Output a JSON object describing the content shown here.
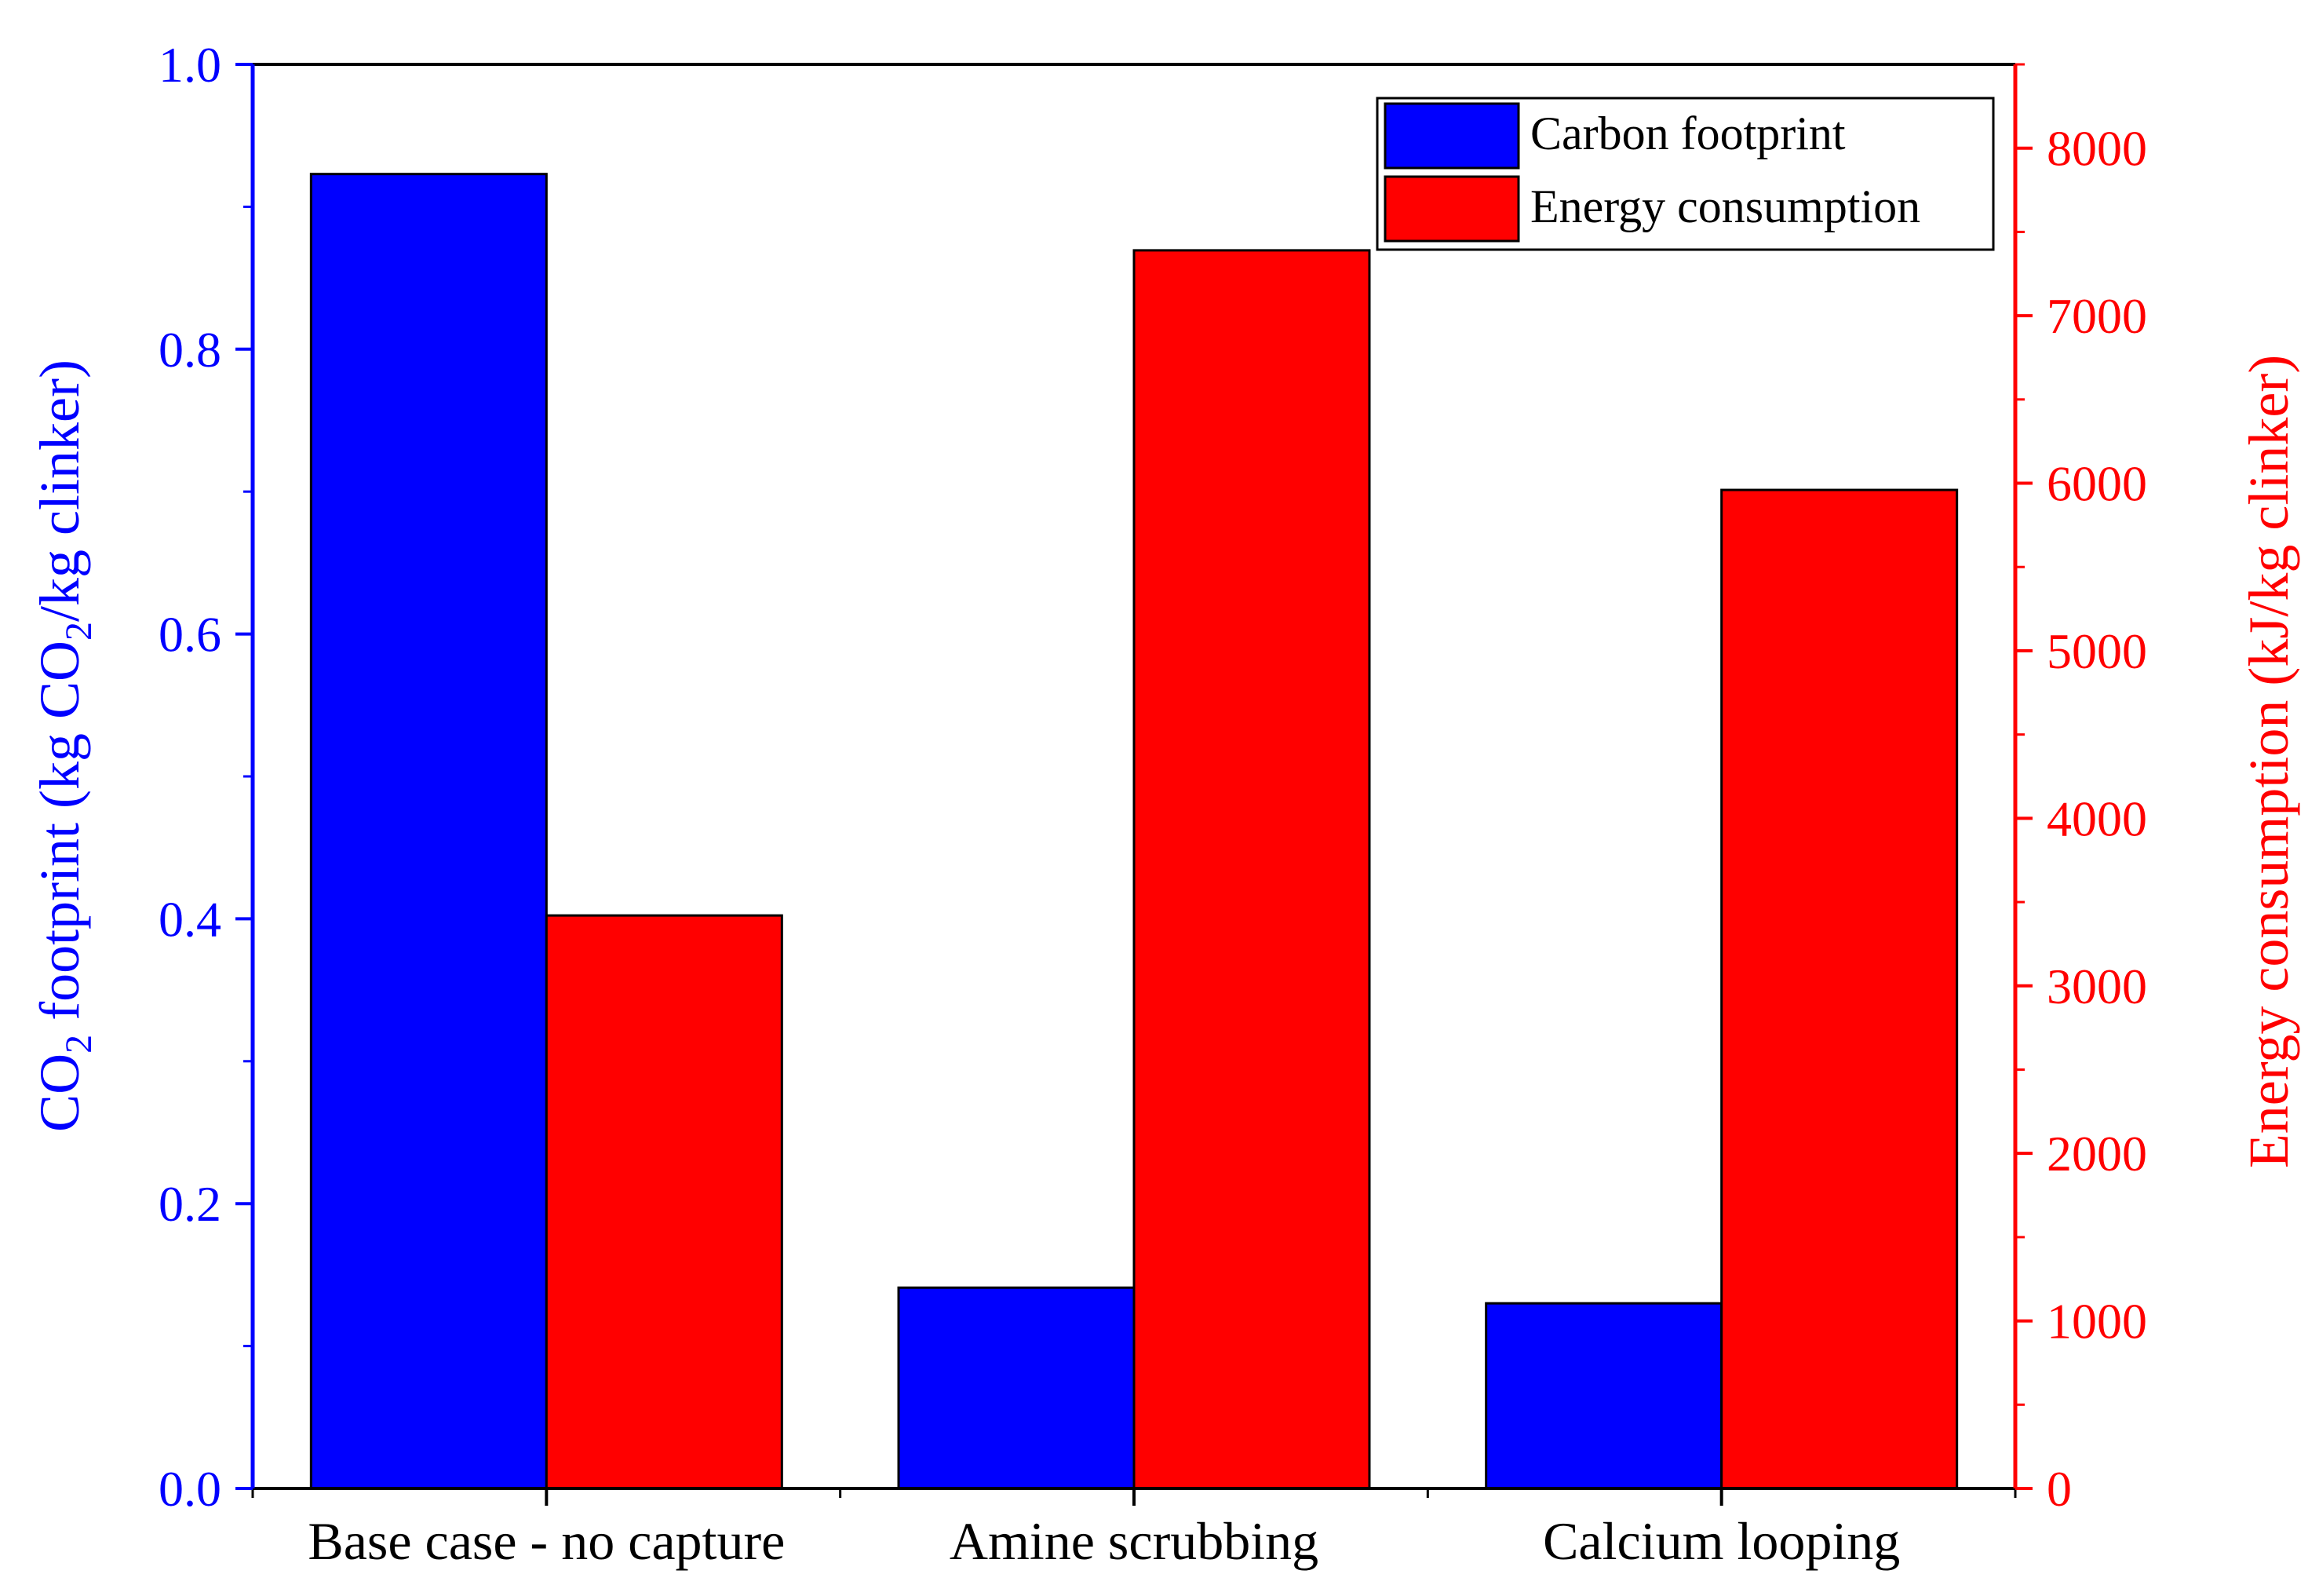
{
  "chart_data": {
    "type": "bar",
    "categories": [
      "Base case - no capture",
      "Amine scrubbing",
      "Calcium looping"
    ],
    "series": [
      {
        "name": "Carbon footprint",
        "axis": "left",
        "color": "#0000ff",
        "values": [
          0.923,
          0.141,
          0.13
        ]
      },
      {
        "name": "Energy consumption",
        "axis": "right",
        "color": "#ff0000",
        "values": [
          3420,
          7390,
          5960
        ]
      }
    ],
    "left_axis": {
      "title_prefix": "CO",
      "title_sub1": "2",
      "title_mid": " footprint (kg CO",
      "title_sub2": "2",
      "title_suffix": "/kg clinker)",
      "ylim": [
        0,
        1.0
      ],
      "ticks": [
        0.0,
        0.2,
        0.4,
        0.6,
        0.8,
        1.0
      ],
      "tick_labels": [
        "0.0",
        "0.2",
        "0.4",
        "0.6",
        "0.8",
        "1.0"
      ],
      "color": "#0000ff"
    },
    "right_axis": {
      "title": "Energy consumption (kJ/kg clinker)",
      "ylim": [
        0,
        8500
      ],
      "ticks": [
        0,
        1000,
        2000,
        3000,
        4000,
        5000,
        6000,
        7000,
        8000
      ],
      "tick_labels": [
        "0",
        "1000",
        "2000",
        "3000",
        "4000",
        "5000",
        "6000",
        "7000",
        "8000"
      ],
      "color": "#ff0000"
    },
    "legend": {
      "position": "top-right",
      "entries": [
        "Carbon footprint",
        "Energy consumption"
      ]
    },
    "grid": false
  }
}
